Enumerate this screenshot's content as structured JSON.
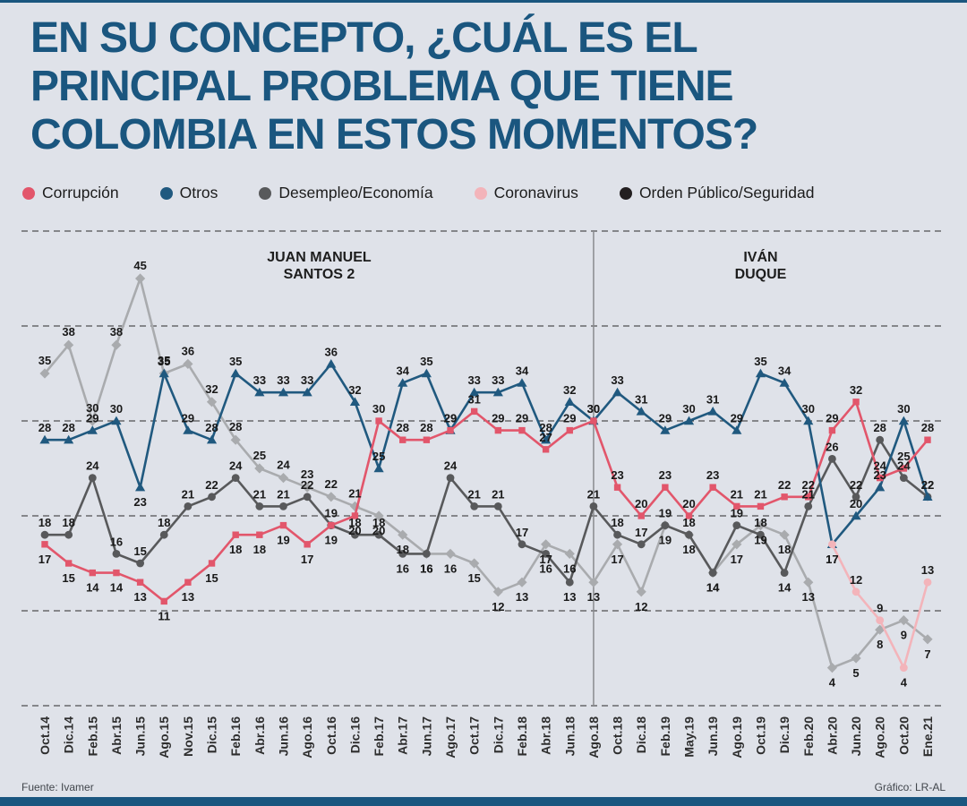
{
  "header": {
    "title_lines": [
      "EN SU CONCEPTO, ¿CUÁL ES EL",
      "PRINCIPAL PROBLEMA QUE TIENE",
      "COLOMBIA EN ESTOS MOMENTOS?"
    ]
  },
  "footer": {
    "source": "Fuente: Ivamer",
    "credit": "Gráfico: LR-AL"
  },
  "colors": {
    "background": "#dfe2e9",
    "title_blue": "#1a567f",
    "accent_bar": "#1a567f",
    "grid": "#2b2b2b"
  },
  "chart_data": {
    "type": "line",
    "title": "EN SU CONCEPTO, ¿CUÁL ES EL PRINCIPAL PROBLEMA QUE TIENE COLOMBIA EN ESTOS MOMENTOS?",
    "ylim": [
      0,
      50
    ],
    "gridlines": [
      0,
      10,
      20,
      30,
      40,
      50
    ],
    "grid_style": "dashed",
    "legend_position": "top",
    "divider_at": "Ago.18",
    "sections": [
      {
        "id": "santos",
        "lines": [
          "JUAN MANUEL",
          "SANTOS 2"
        ]
      },
      {
        "id": "duque",
        "lines": [
          "IVÁN",
          "DUQUE"
        ]
      }
    ],
    "x_categories": [
      "Oct.14",
      "Dic.14",
      "Feb.15",
      "Abr.15",
      "Jun.15",
      "Ago.15",
      "Nov.15",
      "Dic.15",
      "Feb.16",
      "Abr.16",
      "Jun.16",
      "Ago.16",
      "Oct.16",
      "Dic.16",
      "Feb.17",
      "Abr.17",
      "Jun.17",
      "Ago.17",
      "Oct.17",
      "Dic.17",
      "Feb.18",
      "Abr.18",
      "Jun.18",
      "Ago.18",
      "Oct.18",
      "Dic.18",
      "Feb.19",
      "May.19",
      "Jun.19",
      "Ago.19",
      "Oct.19",
      "Dic.19",
      "Feb.20",
      "Abr.20",
      "Jun.20",
      "Ago.20",
      "Oct.20",
      "Ene.21"
    ],
    "series": [
      {
        "id": "corrupcion",
        "name": "Corrupción",
        "color": "#e2566b",
        "marker": "square",
        "values": [
          17,
          15,
          14,
          14,
          13,
          11,
          13,
          15,
          18,
          18,
          19,
          17,
          19,
          20,
          30,
          28,
          28,
          29,
          31,
          29,
          29,
          27,
          29,
          30,
          23,
          20,
          23,
          20,
          23,
          21,
          21,
          22,
          22,
          29,
          32,
          24,
          25,
          28
        ]
      },
      {
        "id": "otros",
        "name": "Otros",
        "color": "#20597f",
        "marker": "triangle",
        "values": [
          28,
          28,
          29,
          30,
          23,
          35,
          29,
          28,
          35,
          33,
          33,
          33,
          36,
          32,
          25,
          34,
          35,
          29,
          33,
          33,
          34,
          28,
          32,
          30,
          33,
          31,
          29,
          30,
          31,
          29,
          35,
          34,
          30,
          17,
          20,
          23,
          30,
          22
        ]
      },
      {
        "id": "desempleo-economia",
        "name": "Desempleo/Economía",
        "color": "#58595b",
        "marker": "circle",
        "values": [
          18,
          18,
          24,
          16,
          15,
          18,
          21,
          22,
          24,
          21,
          21,
          22,
          19,
          18,
          18,
          16,
          16,
          24,
          21,
          21,
          17,
          16,
          13,
          21,
          18,
          17,
          19,
          18,
          14,
          19,
          18,
          14,
          21,
          26,
          22,
          28,
          24,
          22
        ]
      },
      {
        "id": "coronavirus",
        "name": "Coronavirus",
        "color": "#f3b4ba",
        "marker": "circle",
        "values": [
          null,
          null,
          null,
          null,
          null,
          null,
          null,
          null,
          null,
          null,
          null,
          null,
          null,
          null,
          null,
          null,
          null,
          null,
          null,
          null,
          null,
          null,
          null,
          null,
          null,
          null,
          null,
          null,
          null,
          null,
          null,
          null,
          null,
          17,
          12,
          9,
          4,
          13
        ]
      },
      {
        "id": "orden-publico-seguridad",
        "name": "Orden Público/Seguridad",
        "color": "#a9abae",
        "legend_color": "#231f20",
        "marker": "diamond",
        "values": [
          35,
          38,
          30,
          38,
          45,
          35,
          36,
          32,
          28,
          25,
          24,
          23,
          22,
          21,
          20,
          18,
          16,
          16,
          15,
          12,
          13,
          17,
          16,
          13,
          17,
          12,
          19,
          18,
          14,
          17,
          19,
          18,
          13,
          4,
          5,
          8,
          9,
          7
        ]
      }
    ]
  }
}
